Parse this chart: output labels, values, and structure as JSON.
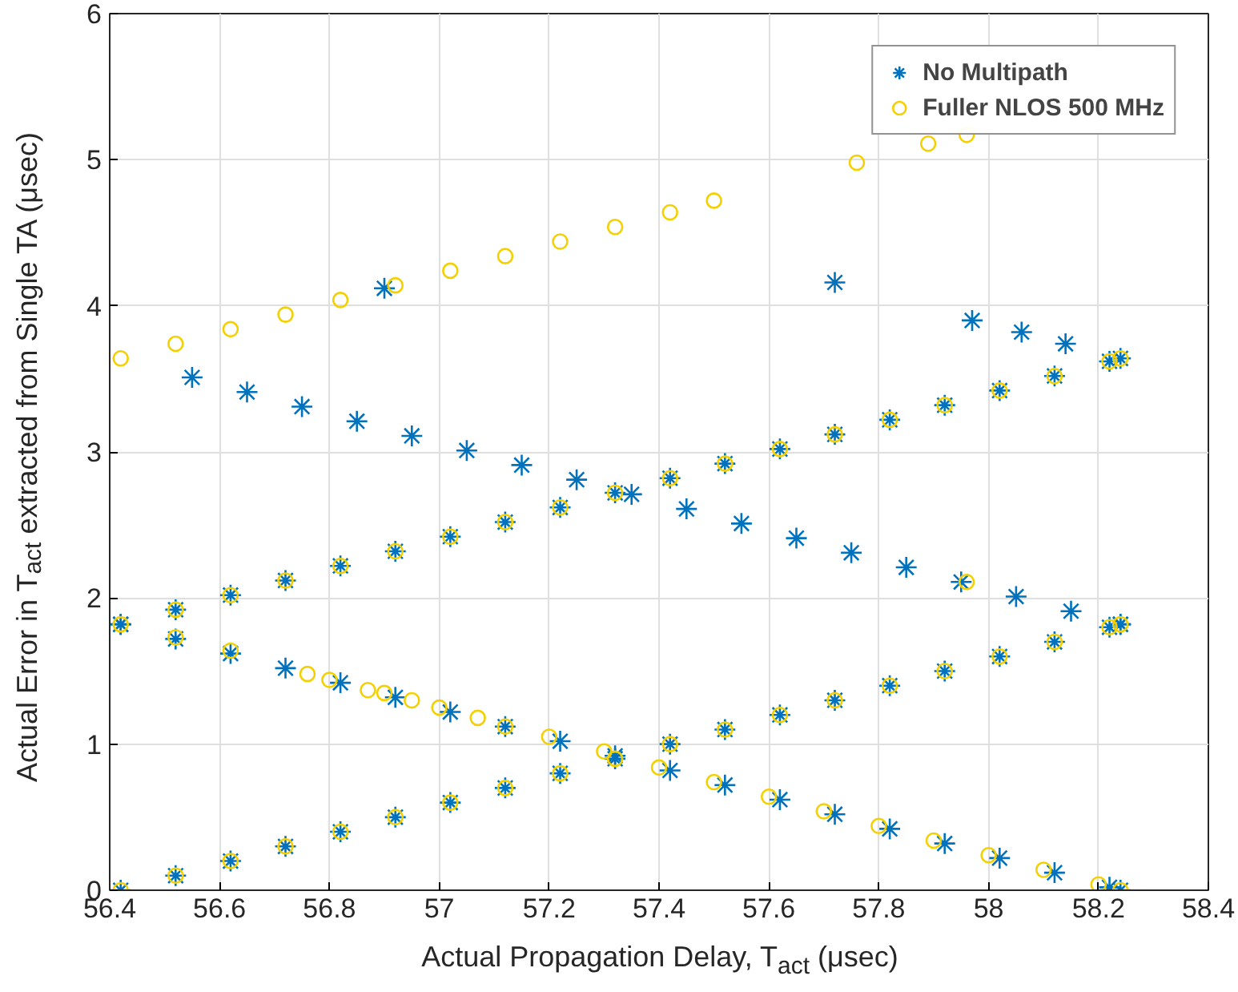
{
  "chart_data": {
    "type": "scatter",
    "xlabel": "Actual Propagation Delay, T$_{act}$ (μsec)",
    "ylabel": "Actual Error in T$_{act}$ extracted from Single TA (μsec)",
    "xlim": [
      56.4,
      58.4
    ],
    "xticks": [
      56.4,
      56.6,
      56.8,
      57,
      57.2,
      57.4,
      57.6,
      57.8,
      58,
      58.2,
      58.4
    ],
    "ylim": [
      0,
      6
    ],
    "yticks": [
      0,
      1,
      2,
      3,
      4,
      5,
      6
    ],
    "grid": true,
    "legend": "top right",
    "series": [
      {
        "name": "No Multipath",
        "color": "#0072bd",
        "marker": "cross",
        "x": [
          56.42,
          56.52,
          56.62,
          56.72,
          56.82,
          56.92,
          57.02,
          57.12,
          57.22,
          57.32,
          57.42,
          57.52,
          57.62,
          57.72,
          57.82,
          57.92,
          58.02,
          58.12,
          58.22,
          58.24,
          56.42,
          56.52,
          56.62,
          56.72,
          56.82,
          56.92,
          57.02,
          57.12,
          57.22,
          57.32,
          57.42,
          57.52,
          57.62,
          57.72,
          57.82,
          57.92,
          58.02,
          58.12,
          58.22,
          58.24,
          56.42,
          56.52,
          56.62,
          56.72,
          56.82,
          56.92,
          57.02,
          57.12,
          57.22,
          57.32,
          57.42,
          57.52,
          57.62,
          57.72,
          57.82,
          57.92,
          58.02,
          58.12,
          58.22,
          58.24,
          56.55,
          56.65,
          56.75,
          56.85,
          56.95,
          57.05,
          57.15,
          57.25,
          57.35,
          57.45,
          57.55,
          57.65,
          57.75,
          57.85,
          57.95,
          58.05,
          58.15,
          58.24,
          56.9,
          57.72,
          57.97,
          58.06,
          58.14
        ],
        "values": [
          0,
          0.1,
          0.2,
          0.3,
          0.4,
          0.5,
          0.6,
          0.7,
          0.8,
          0.9,
          1.0,
          1.1,
          1.2,
          1.3,
          1.4,
          1.5,
          1.6,
          1.7,
          1.8,
          1.82,
          1.82,
          1.92,
          2.02,
          2.12,
          2.22,
          2.32,
          2.42,
          2.52,
          2.62,
          2.72,
          2.82,
          2.92,
          3.02,
          3.12,
          3.22,
          3.32,
          3.42,
          3.52,
          3.62,
          3.64,
          1.82,
          1.72,
          1.62,
          1.52,
          1.42,
          1.32,
          1.22,
          1.12,
          1.02,
          0.92,
          0.82,
          0.72,
          0.62,
          0.52,
          0.42,
          0.32,
          0.22,
          0.12,
          0.02,
          0,
          3.51,
          3.41,
          3.31,
          3.21,
          3.11,
          3.01,
          2.91,
          2.81,
          2.71,
          2.61,
          2.51,
          2.41,
          2.31,
          2.21,
          2.11,
          2.01,
          1.91,
          1.82,
          4.12,
          4.16,
          3.9,
          3.82,
          3.74
        ]
      },
      {
        "name": "Fuller NLOS 500 MHz",
        "color": "#f5d000",
        "marker": "circle",
        "x": [
          56.42,
          56.52,
          56.62,
          56.72,
          56.82,
          56.92,
          57.02,
          57.12,
          57.22,
          57.32,
          57.42,
          57.52,
          57.62,
          57.72,
          57.82,
          57.92,
          58.02,
          58.12,
          58.22,
          58.24,
          56.42,
          56.52,
          56.62,
          56.72,
          56.82,
          56.92,
          57.02,
          57.12,
          57.22,
          57.32,
          57.42,
          57.52,
          57.62,
          57.72,
          57.82,
          57.92,
          58.02,
          58.12,
          58.22,
          58.24,
          56.42,
          56.52,
          56.62,
          56.72,
          56.82,
          56.92,
          57.02,
          57.12,
          57.22,
          57.32,
          57.42,
          57.5,
          57.76,
          57.89,
          57.96,
          57.96,
          56.52,
          56.62,
          56.76,
          56.8,
          56.87,
          56.9,
          56.95,
          57.0,
          57.07,
          57.12,
          57.2,
          57.3,
          57.4,
          57.5,
          57.6,
          57.7,
          57.8,
          57.9,
          58.0,
          58.1,
          58.2,
          58.24
        ],
        "values": [
          0,
          0.1,
          0.2,
          0.3,
          0.4,
          0.5,
          0.6,
          0.7,
          0.8,
          0.9,
          1.0,
          1.1,
          1.2,
          1.3,
          1.4,
          1.5,
          1.6,
          1.7,
          1.8,
          1.82,
          1.82,
          1.92,
          2.02,
          2.12,
          2.22,
          2.32,
          2.42,
          2.52,
          2.62,
          2.72,
          2.82,
          2.92,
          3.02,
          3.12,
          3.22,
          3.32,
          3.42,
          3.52,
          3.62,
          3.64,
          3.64,
          3.74,
          3.84,
          3.94,
          4.04,
          4.14,
          4.24,
          4.34,
          4.44,
          4.54,
          4.64,
          4.72,
          4.98,
          5.11,
          5.17,
          2.11,
          1.73,
          1.64,
          1.48,
          1.44,
          1.37,
          1.35,
          1.3,
          1.25,
          1.18,
          1.12,
          1.05,
          0.95,
          0.84,
          0.74,
          0.64,
          0.54,
          0.44,
          0.34,
          0.24,
          0.14,
          0.04,
          0
        ]
      }
    ]
  }
}
